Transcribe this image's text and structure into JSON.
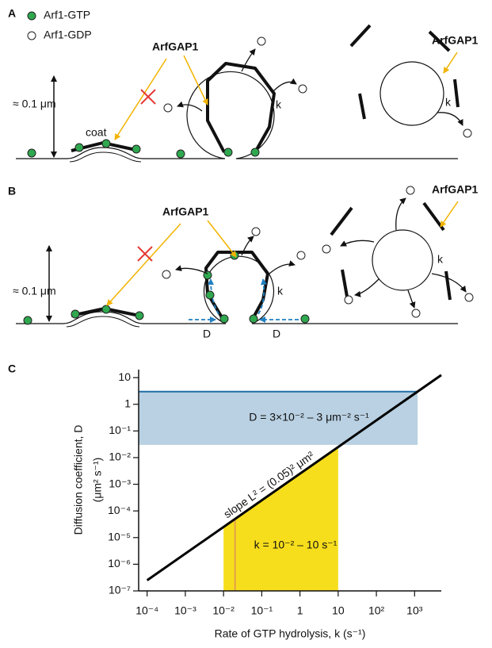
{
  "panel_a": {
    "label": "A",
    "legend": [
      "Arf1-GTP",
      "Arf1-GDP"
    ],
    "scale": "≈ 0.1 μm",
    "coat": "coat",
    "enzyme": [
      "ArfGAP1",
      "ArfGAP1"
    ],
    "rate": [
      "k",
      "k"
    ]
  },
  "panel_b": {
    "label": "B",
    "scale": "≈ 0.1 μm",
    "enzyme": [
      "ArfGAP1",
      "ArfGAP1"
    ],
    "rate": [
      "k",
      "k"
    ],
    "diffusion": [
      "D",
      "D"
    ]
  },
  "chart_data": {
    "type": "line",
    "panel_label": "C",
    "x_label": "Rate of GTP hydrolysis, k (s⁻¹)",
    "y_label": [
      "Diffusion coefficient, D",
      "(μm² s⁻¹)"
    ],
    "log_x": true,
    "log_y": true,
    "xlim": [
      6e-05,
      5000
    ],
    "ylim": [
      1e-07,
      20
    ],
    "xticks": [
      {
        "value": 0.0001,
        "label": "10⁻⁴"
      },
      {
        "value": 0.001,
        "label": "10⁻³"
      },
      {
        "value": 0.01,
        "label": "10⁻²"
      },
      {
        "value": 0.1,
        "label": "10⁻¹"
      },
      1,
      10,
      {
        "value": 100,
        "label": "10²"
      },
      {
        "value": 1000,
        "label": "10³"
      }
    ],
    "yticks": [
      {
        "value": 1e-07,
        "label": "10⁻⁷"
      },
      {
        "value": 1e-06,
        "label": "10⁻⁶"
      },
      {
        "value": 1e-05,
        "label": "10⁻⁵"
      },
      {
        "value": 0.0001,
        "label": "10⁻⁴"
      },
      {
        "value": 0.001,
        "label": "10⁻³"
      },
      {
        "value": 0.01,
        "label": "10⁻²"
      },
      {
        "value": 0.1,
        "label": "10⁻¹"
      },
      1,
      10
    ],
    "x": [
      0.0001,
      5000
    ],
    "values": [
      2.5e-07,
      12.5
    ],
    "color": "#000000",
    "L": 0.05,
    "d_range": [
      0.03,
      3
    ],
    "d_color": "#b9d1e2",
    "d_line_color": "#1f6fa8",
    "k_range": [
      0.01,
      10
    ],
    "k_color": "#f7de1c",
    "k_marker": 0.02,
    "k_marker_color": "#e3a04a",
    "annotations": {
      "d_range": "D = 3×10⁻² – 3 μm⁻² s⁻¹",
      "slope": "slope L² = (0.05)² μm²",
      "k_range": "k = 10⁻² – 10 s⁻¹"
    }
  }
}
